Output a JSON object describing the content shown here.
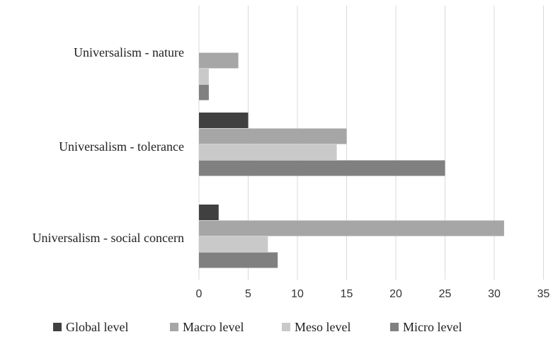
{
  "chart_data": {
    "type": "bar",
    "orientation": "horizontal",
    "categories": [
      "Universalism - nature",
      "Universalism - tolerance",
      "Universalism - social concern"
    ],
    "series": [
      {
        "name": "Global level",
        "values": [
          0,
          5,
          2
        ],
        "color": "#404040"
      },
      {
        "name": "Macro level",
        "values": [
          4,
          15,
          31
        ],
        "color": "#a6a6a6"
      },
      {
        "name": "Meso level",
        "values": [
          1,
          14,
          7
        ],
        "color": "#c9c9c9"
      },
      {
        "name": "Micro level",
        "values": [
          1,
          25,
          8
        ],
        "color": "#808080"
      }
    ],
    "x_ticks": [
      "0",
      "5",
      "10",
      "15",
      "20",
      "25",
      "30",
      "35"
    ],
    "xlim": [
      0,
      35
    ],
    "grid": true,
    "legend_position": "bottom"
  }
}
